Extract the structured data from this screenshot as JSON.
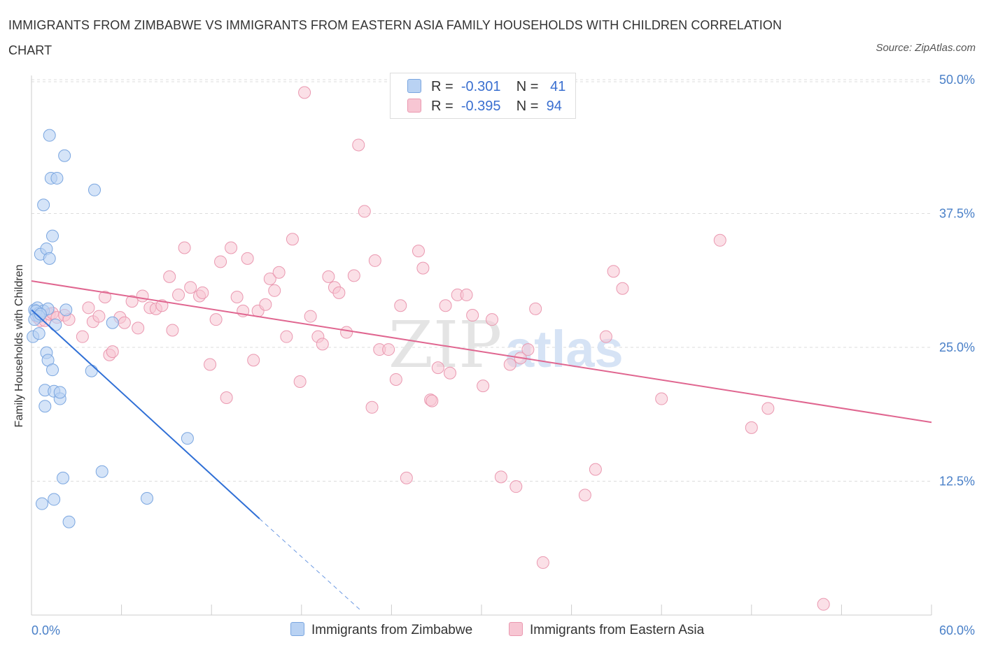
{
  "header": {
    "title": "IMMIGRANTS FROM ZIMBABWE VS IMMIGRANTS FROM EASTERN ASIA FAMILY HOUSEHOLDS WITH CHILDREN CORRELATION CHART",
    "source": "Source: ZipAtlas.com"
  },
  "legend": {
    "rows": [
      {
        "r_label": "R =",
        "r_value": "-0.301",
        "n_label": "N =",
        "n_value": "41"
      },
      {
        "r_label": "R =",
        "r_value": "-0.395",
        "n_label": "N =",
        "n_value": "94"
      }
    ],
    "bottom": [
      "Immigrants from Zimbabwe",
      "Immigrants from Eastern Asia"
    ]
  },
  "colors": {
    "zimbabwe_fill": "#b9d2f3",
    "zimbabwe_stroke": "#7aa6e0",
    "zimbabwe_line": "#2f6fd6",
    "easternasia_fill": "#f7c6d3",
    "easternasia_stroke": "#ea98b0",
    "easternasia_line": "#e06690",
    "tick_text": "#4a80c8",
    "grid": "#dddddd"
  },
  "chart_data": {
    "type": "scatter",
    "xlabel": "",
    "ylabel": "Family Households with Children",
    "xlim": [
      0,
      60
    ],
    "ylim": [
      0,
      50
    ],
    "x_tick_labels": [
      "0.0%",
      "60.0%"
    ],
    "y_ticks": [
      12.5,
      25.0,
      37.5,
      50.0
    ],
    "y_tick_labels": [
      "12.5%",
      "25.0%",
      "37.5%",
      "50.0%"
    ],
    "grid": "horizontal dashed",
    "legend_position": "top-center",
    "watermark": "ZIPatlas",
    "series": [
      {
        "name": "Immigrants from Zimbabwe",
        "color": "#b9d2f3",
        "points": [
          [
            0.1,
            26.0
          ],
          [
            0.2,
            28.5
          ],
          [
            0.3,
            28.0
          ],
          [
            0.4,
            28.7
          ],
          [
            0.5,
            28.2
          ],
          [
            0.5,
            26.3
          ],
          [
            0.6,
            33.7
          ],
          [
            0.8,
            28.4
          ],
          [
            0.8,
            38.3
          ],
          [
            0.9,
            21.0
          ],
          [
            0.9,
            19.5
          ],
          [
            1.0,
            34.2
          ],
          [
            1.0,
            24.5
          ],
          [
            1.1,
            23.8
          ],
          [
            1.1,
            28.6
          ],
          [
            1.2,
            44.8
          ],
          [
            1.2,
            33.3
          ],
          [
            1.3,
            40.8
          ],
          [
            1.4,
            35.4
          ],
          [
            1.4,
            22.9
          ],
          [
            1.5,
            20.9
          ],
          [
            1.5,
            10.8
          ],
          [
            1.6,
            27.1
          ],
          [
            1.7,
            40.8
          ],
          [
            1.9,
            20.2
          ],
          [
            1.9,
            20.8
          ],
          [
            2.1,
            12.8
          ],
          [
            2.2,
            42.9
          ],
          [
            2.3,
            28.5
          ],
          [
            2.5,
            8.7
          ],
          [
            4.0,
            22.8
          ],
          [
            4.2,
            39.7
          ],
          [
            4.7,
            13.4
          ],
          [
            5.4,
            27.3
          ],
          [
            7.7,
            10.9
          ],
          [
            10.4,
            16.5
          ],
          [
            0.3,
            28.4
          ],
          [
            0.7,
            10.4
          ],
          [
            0.5,
            27.9
          ],
          [
            0.2,
            27.6
          ],
          [
            0.6,
            28.1
          ]
        ],
        "trend": {
          "x_start": 0.0,
          "y_start": 28.5,
          "x_solid_end": 15.2,
          "y_solid_end": 9.0,
          "x_dash_end": 21.9,
          "y_dash_end": 0.5
        }
      },
      {
        "name": "Immigrants from Eastern Asia",
        "color": "#f7c6d3",
        "points": [
          [
            0.4,
            27.8
          ],
          [
            0.6,
            27.5
          ],
          [
            0.9,
            27.5
          ],
          [
            1.2,
            28.1
          ],
          [
            1.4,
            28.2
          ],
          [
            1.7,
            27.8
          ],
          [
            2.2,
            28.0
          ],
          [
            2.5,
            27.6
          ],
          [
            3.4,
            26.0
          ],
          [
            3.8,
            28.7
          ],
          [
            4.1,
            27.4
          ],
          [
            4.5,
            27.9
          ],
          [
            4.9,
            29.7
          ],
          [
            5.2,
            24.3
          ],
          [
            5.4,
            24.6
          ],
          [
            5.9,
            27.8
          ],
          [
            6.2,
            27.3
          ],
          [
            6.7,
            29.3
          ],
          [
            7.1,
            26.8
          ],
          [
            7.4,
            29.8
          ],
          [
            7.9,
            28.7
          ],
          [
            8.3,
            28.6
          ],
          [
            8.7,
            28.9
          ],
          [
            9.2,
            31.6
          ],
          [
            9.4,
            26.6
          ],
          [
            9.8,
            29.9
          ],
          [
            10.2,
            34.3
          ],
          [
            10.6,
            30.6
          ],
          [
            11.2,
            29.8
          ],
          [
            11.4,
            30.1
          ],
          [
            11.9,
            23.4
          ],
          [
            12.3,
            27.6
          ],
          [
            12.6,
            33.0
          ],
          [
            13.0,
            20.3
          ],
          [
            13.3,
            34.3
          ],
          [
            13.7,
            29.7
          ],
          [
            14.1,
            28.4
          ],
          [
            14.4,
            33.3
          ],
          [
            14.8,
            23.8
          ],
          [
            15.1,
            28.4
          ],
          [
            15.6,
            29.0
          ],
          [
            15.9,
            31.4
          ],
          [
            16.2,
            30.3
          ],
          [
            16.5,
            32.0
          ],
          [
            17.0,
            26.0
          ],
          [
            17.4,
            35.1
          ],
          [
            17.9,
            21.8
          ],
          [
            18.2,
            48.8
          ],
          [
            18.6,
            27.9
          ],
          [
            19.1,
            26.0
          ],
          [
            19.4,
            25.3
          ],
          [
            19.8,
            31.6
          ],
          [
            20.2,
            30.6
          ],
          [
            20.5,
            30.1
          ],
          [
            21.0,
            26.4
          ],
          [
            21.5,
            31.7
          ],
          [
            21.8,
            43.9
          ],
          [
            22.2,
            37.7
          ],
          [
            22.7,
            19.4
          ],
          [
            22.9,
            33.1
          ],
          [
            23.2,
            24.8
          ],
          [
            23.8,
            24.8
          ],
          [
            24.3,
            22.0
          ],
          [
            24.6,
            28.9
          ],
          [
            25.0,
            12.8
          ],
          [
            25.8,
            34.0
          ],
          [
            26.1,
            32.4
          ],
          [
            26.6,
            20.1
          ],
          [
            27.1,
            23.1
          ],
          [
            27.6,
            28.9
          ],
          [
            27.9,
            22.6
          ],
          [
            28.4,
            29.9
          ],
          [
            29.0,
            29.9
          ],
          [
            29.4,
            28.0
          ],
          [
            30.1,
            21.4
          ],
          [
            30.7,
            27.6
          ],
          [
            31.3,
            12.9
          ],
          [
            31.9,
            23.4
          ],
          [
            32.3,
            12.0
          ],
          [
            32.6,
            24.0
          ],
          [
            33.1,
            24.8
          ],
          [
            33.6,
            28.6
          ],
          [
            34.1,
            4.9
          ],
          [
            36.9,
            11.2
          ],
          [
            37.6,
            13.6
          ],
          [
            38.3,
            26.0
          ],
          [
            38.8,
            32.1
          ],
          [
            39.4,
            30.5
          ],
          [
            42.0,
            20.2
          ],
          [
            45.9,
            35.0
          ],
          [
            48.0,
            17.5
          ],
          [
            49.1,
            19.3
          ],
          [
            52.8,
            1.0
          ],
          [
            26.7,
            20.0
          ]
        ],
        "trend": {
          "x_start": 0.0,
          "y_start": 31.2,
          "x_end": 60.0,
          "y_end": 18.0
        }
      }
    ]
  }
}
